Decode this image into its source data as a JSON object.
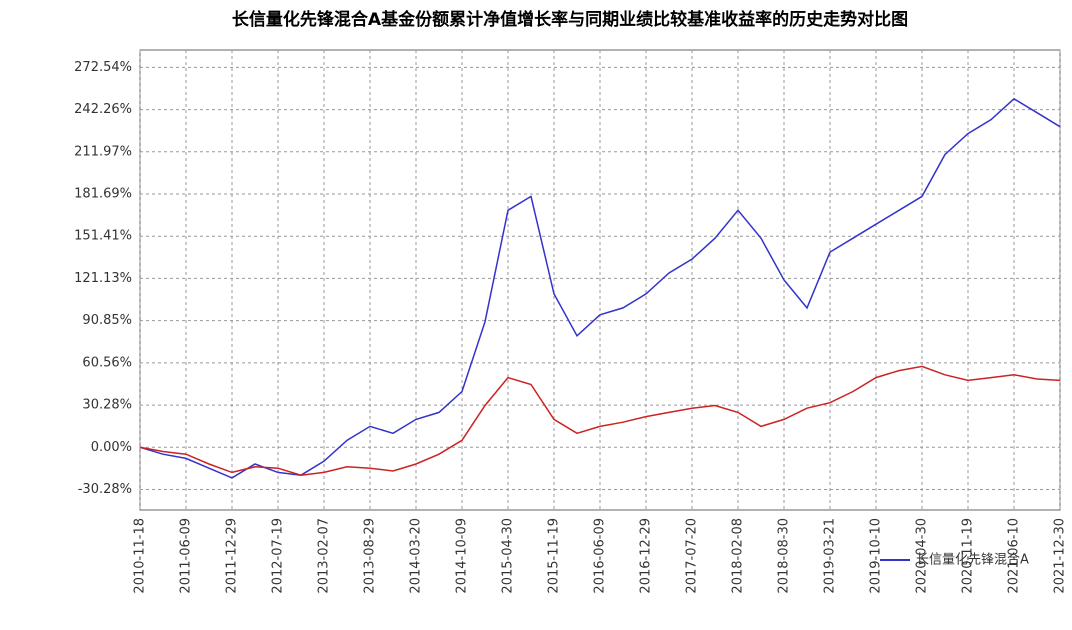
{
  "chart_data": {
    "type": "line",
    "title": "长信量化先锋混合A基金份额累计净值增长率与同期业绩比较基准收益率的历史走势对比图",
    "categories": [
      "2010-11-18",
      null,
      "2011-06-09",
      null,
      "2011-12-29",
      null,
      "2012-07-19",
      null,
      "2013-02-07",
      null,
      "2013-08-29",
      null,
      "2014-03-20",
      null,
      "2014-10-09",
      null,
      "2015-04-30",
      null,
      "2015-11-19",
      null,
      "2016-06-09",
      null,
      "2016-12-29",
      null,
      "2017-07-20",
      null,
      "2018-02-08",
      null,
      "2018-08-30",
      null,
      "2019-03-21",
      null,
      "2019-10-10",
      null,
      "2020-04-30",
      null,
      "2020-11-19",
      null,
      "2021-06-10",
      null,
      "2021-12-30"
    ],
    "series": [
      {
        "name": "长信量化先锋混合A",
        "color": "#3333cc",
        "values": [
          0,
          -5,
          -8,
          -15,
          -22,
          -12,
          -18,
          -20,
          -10,
          5,
          15,
          10,
          20,
          25,
          40,
          90,
          170,
          180,
          110,
          80,
          95,
          100,
          110,
          125,
          135,
          150,
          170,
          150,
          120,
          100,
          140,
          150,
          160,
          170,
          180,
          210,
          225,
          235,
          250,
          240,
          230
        ]
      },
      {
        "color": "#cc2222",
        "values": [
          0,
          -3,
          -5,
          -12,
          -18,
          -14,
          -15,
          -20,
          -18,
          -14,
          -15,
          -17,
          -12,
          -5,
          5,
          30,
          50,
          45,
          20,
          10,
          15,
          18,
          22,
          25,
          28,
          30,
          25,
          15,
          20,
          28,
          32,
          40,
          50,
          55,
          58,
          52,
          48,
          50,
          52,
          49,
          48
        ]
      }
    ],
    "ylim": [
      -45,
      285
    ],
    "yticks": [
      {
        "value": 272.54,
        "label": "272.54%"
      },
      {
        "value": 242.26,
        "label": "242.26%"
      },
      {
        "value": 211.97,
        "label": "211.97%"
      },
      {
        "value": 181.69,
        "label": "181.69%"
      },
      {
        "value": 151.41,
        "label": "151.41%"
      },
      {
        "value": 121.13,
        "label": "121.13%"
      },
      {
        "value": 90.85,
        "label": "90.85%"
      },
      {
        "value": 60.56,
        "label": "60.56%"
      },
      {
        "value": 30.28,
        "label": "30.28%"
      },
      {
        "value": 0,
        "label": "0.00%"
      },
      {
        "value": -30.28,
        "label": "-30.28%"
      }
    ],
    "grid": true
  }
}
